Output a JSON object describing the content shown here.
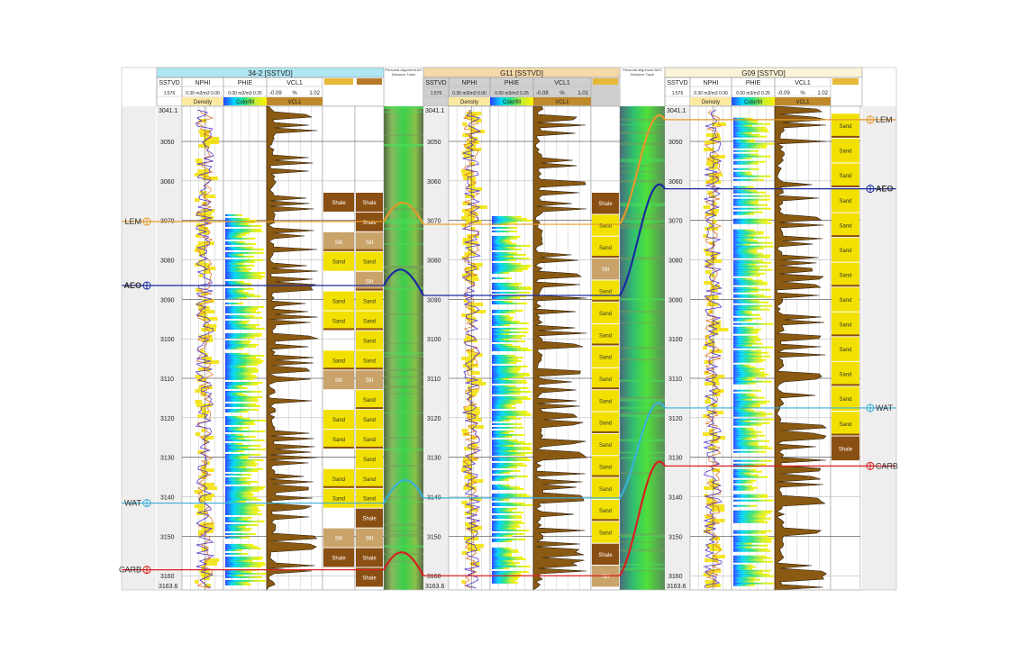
{
  "colors": {
    "sand": "#f2e000",
    "shale": "#8a4f12",
    "silt": "#c9a36a",
    "grid": "#c8c8c8",
    "panel_bg": "#eeeeee",
    "well1_header": "#aee6f2",
    "well2_header": "#f5d9a8",
    "well3_header": "#fbf4d8",
    "lem": "#e59a2a",
    "aeo": "#1a2aa0",
    "wat": "#3ab0d6",
    "carb": "#d92020"
  },
  "wells": [
    {
      "name": "34-2 [SSTVD]",
      "ref_col": "SSTVD",
      "scale": "1:576",
      "tracks": [
        "NPHI",
        "PHIE",
        "VCL1"
      ],
      "ranges": {
        "nphi": "0.30 m3/m3 0.00",
        "phie": "0.00 m3/m3 0.25",
        "vcl1_min": "-0.09",
        "vcl1_unit": "%",
        "vcl1_max": "1.02"
      },
      "sublabels": {
        "density": "Density",
        "colorfill": "Colorfill",
        "vcl1": "VCL1"
      },
      "depth_top": "3041.1",
      "depth_bottom": "3163.6",
      "ticks": [
        "3050",
        "3060",
        "3070",
        "3080",
        "3090",
        "3100",
        "3110",
        "3120",
        "3130",
        "3140",
        "3150",
        "3160"
      ],
      "lithology": [
        "Shale",
        "Shale",
        "Silt",
        "Sand",
        "Silt",
        "Sand",
        "Sand",
        "Sand",
        "Sand",
        "Silt",
        "Sand",
        "Sand",
        "Sand",
        "Sand",
        "Sand",
        "Sand",
        "Shale",
        "Silt",
        "Shale",
        "Shale"
      ]
    },
    {
      "name": "G11 [SSTVD]",
      "ref_col": "SSTVD",
      "scale": "1:576",
      "tracks": [
        "NPHI",
        "PHIE",
        "VCL1"
      ],
      "ranges": {
        "nphi": "0.30 m3/m3 0.00",
        "phie": "0.00 m3/m3 0.25",
        "vcl1_min": "-0.08",
        "vcl1_unit": "%",
        "vcl1_max": "1.01"
      },
      "sublabels": {
        "density": "Density",
        "colorfill": "Colorfill",
        "vcl1": "VCL1"
      },
      "depth_top": "3041.1",
      "depth_bottom": "3163.6",
      "ticks": [
        "3050",
        "3060",
        "3070",
        "3080",
        "3090",
        "3100",
        "3110",
        "3120",
        "3130",
        "3140",
        "3150",
        "3160"
      ],
      "lithology": [
        "Shale",
        "Sand",
        "Sand",
        "Silt",
        "Sand",
        "Sand",
        "Sand",
        "Sand",
        "Sand",
        "Sand",
        "Sand",
        "Sand",
        "Sand",
        "Sand",
        "Sand",
        "Sand",
        "Shale",
        "Silt"
      ]
    },
    {
      "name": "G09 [SSTVD]",
      "ref_col": "SSTVD",
      "scale": "1:576",
      "tracks": [
        "NPHI",
        "PHIE",
        "VCL1"
      ],
      "ranges": {
        "nphi": "0.30 m3/m3 0.00",
        "phie": "0.00 m3/m3 0.25",
        "vcl1_min": "-0.09",
        "vcl1_unit": "%",
        "vcl1_max": "1.02"
      },
      "sublabels": {
        "density": "Density",
        "colorfill": "Colorfill",
        "vcl1": "VCL1"
      },
      "depth_top": "3041.1",
      "depth_bottom": "3163.6",
      "ticks": [
        "3050",
        "3060",
        "3070",
        "3080",
        "3090",
        "3100",
        "3110",
        "3120",
        "3130",
        "3140",
        "3150",
        "3160"
      ],
      "lithology": [
        "Sand",
        "Sand",
        "Sand",
        "Sand",
        "Sand",
        "Sand",
        "Sand",
        "Sand",
        "Sand",
        "Sand",
        "Sand",
        "Sand",
        "Sand",
        "Shale"
      ]
    }
  ],
  "correlation_panels": [
    {
      "title": "Personal alignment AO\nDistance Track"
    },
    {
      "title": "Personal alignment AEO\nDistance Track"
    }
  ],
  "markers": [
    "LEM",
    "AEO",
    "WAT",
    "CARB"
  ]
}
